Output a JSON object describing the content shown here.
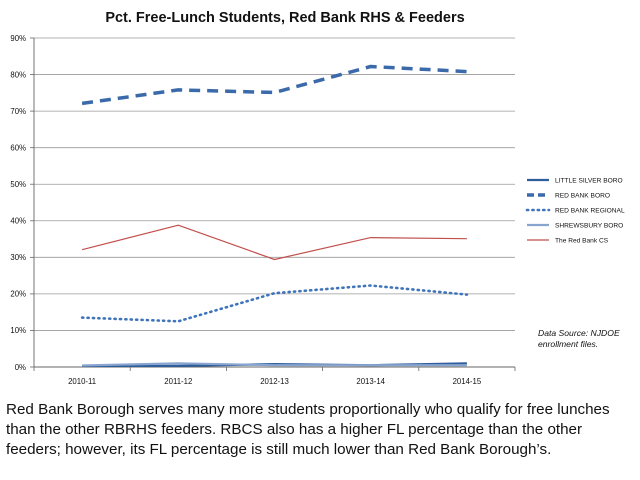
{
  "chart_data": {
    "type": "line",
    "title": "Pct. Free-Lunch Students, Red Bank RHS & Feeders",
    "xlabel": "",
    "ylabel": "",
    "ylim": [
      0,
      90
    ],
    "y_ticks": [
      "0%",
      "10%",
      "20%",
      "30%",
      "40%",
      "50%",
      "60%",
      "70%",
      "80%",
      "90%"
    ],
    "categories": [
      "2010-11",
      "2011-12",
      "2012-13",
      "2013-14",
      "2014-15"
    ],
    "series": [
      {
        "name": "LITTLE SILVER BORO",
        "values": [
          0.3,
          0.3,
          0.8,
          0.5,
          1.0
        ],
        "color": "#2e5e9c",
        "style": "solid"
      },
      {
        "name": "RED BANK BORO",
        "values": [
          72.1,
          75.8,
          75.1,
          82.2,
          80.8
        ],
        "color": "#3a6aaa",
        "style": "dashed"
      },
      {
        "name": "RED BANK REGIONAL",
        "values": [
          13.5,
          12.5,
          20.2,
          22.3,
          19.8
        ],
        "color": "#3f74bb",
        "style": "dotted"
      },
      {
        "name": "SHREWSBURY BORO",
        "values": [
          0.4,
          1.0,
          0.5,
          0.5,
          0.5
        ],
        "color": "#88a4cf",
        "style": "solid"
      },
      {
        "name": "The Red Bank CS",
        "values": [
          32.1,
          38.8,
          29.4,
          35.4,
          35.1
        ],
        "color": "#c0504d",
        "style": "solid"
      }
    ],
    "grid": true,
    "legend_position": "right",
    "annotation": "Data Source: NJDOE enrollment files."
  },
  "caption": "Red Bank Borough serves many more students proportionally who qualify for free lunches than the other RBRHS feeders. RBCS also has a higher FL percentage than the other feeders; however, its FL percentage is still much lower than Red Bank Borough’s."
}
